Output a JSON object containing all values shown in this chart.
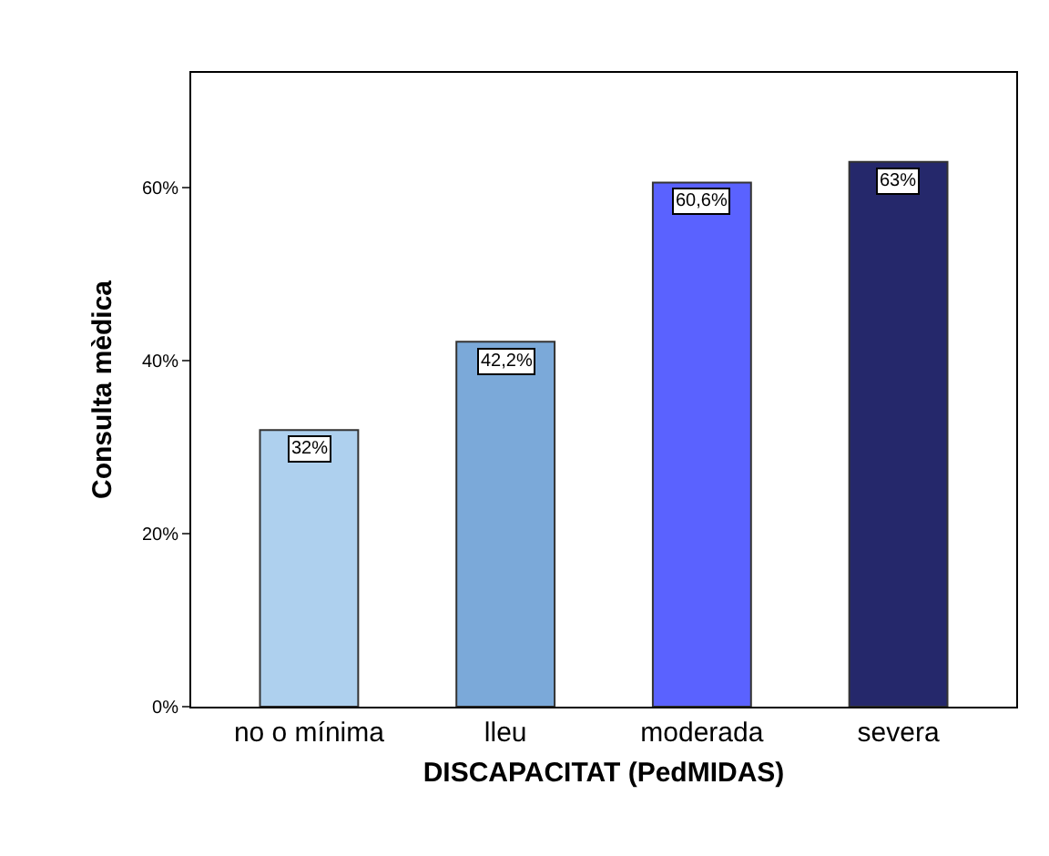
{
  "chart_data": {
    "type": "bar",
    "xlabel": "DISCAPACITAT (PedMIDAS)",
    "ylabel": "Consulta mèdica",
    "categories": [
      "no o mínima",
      "lleu",
      "moderada",
      "severa"
    ],
    "values": [
      32,
      42.2,
      60.6,
      63
    ],
    "value_labels": [
      "32%",
      "42,2%",
      "60,6%",
      "63%"
    ],
    "colors": [
      "#aed0ee",
      "#7ba9d9",
      "#5a62ff",
      "#25286b"
    ],
    "ylim": [
      0,
      73.3
    ],
    "yticks": [
      {
        "value": 0,
        "label": "0%"
      },
      {
        "value": 20,
        "label": "20%"
      },
      {
        "value": 40,
        "label": "40%"
      },
      {
        "value": 60,
        "label": "60%"
      }
    ],
    "grid": false
  }
}
